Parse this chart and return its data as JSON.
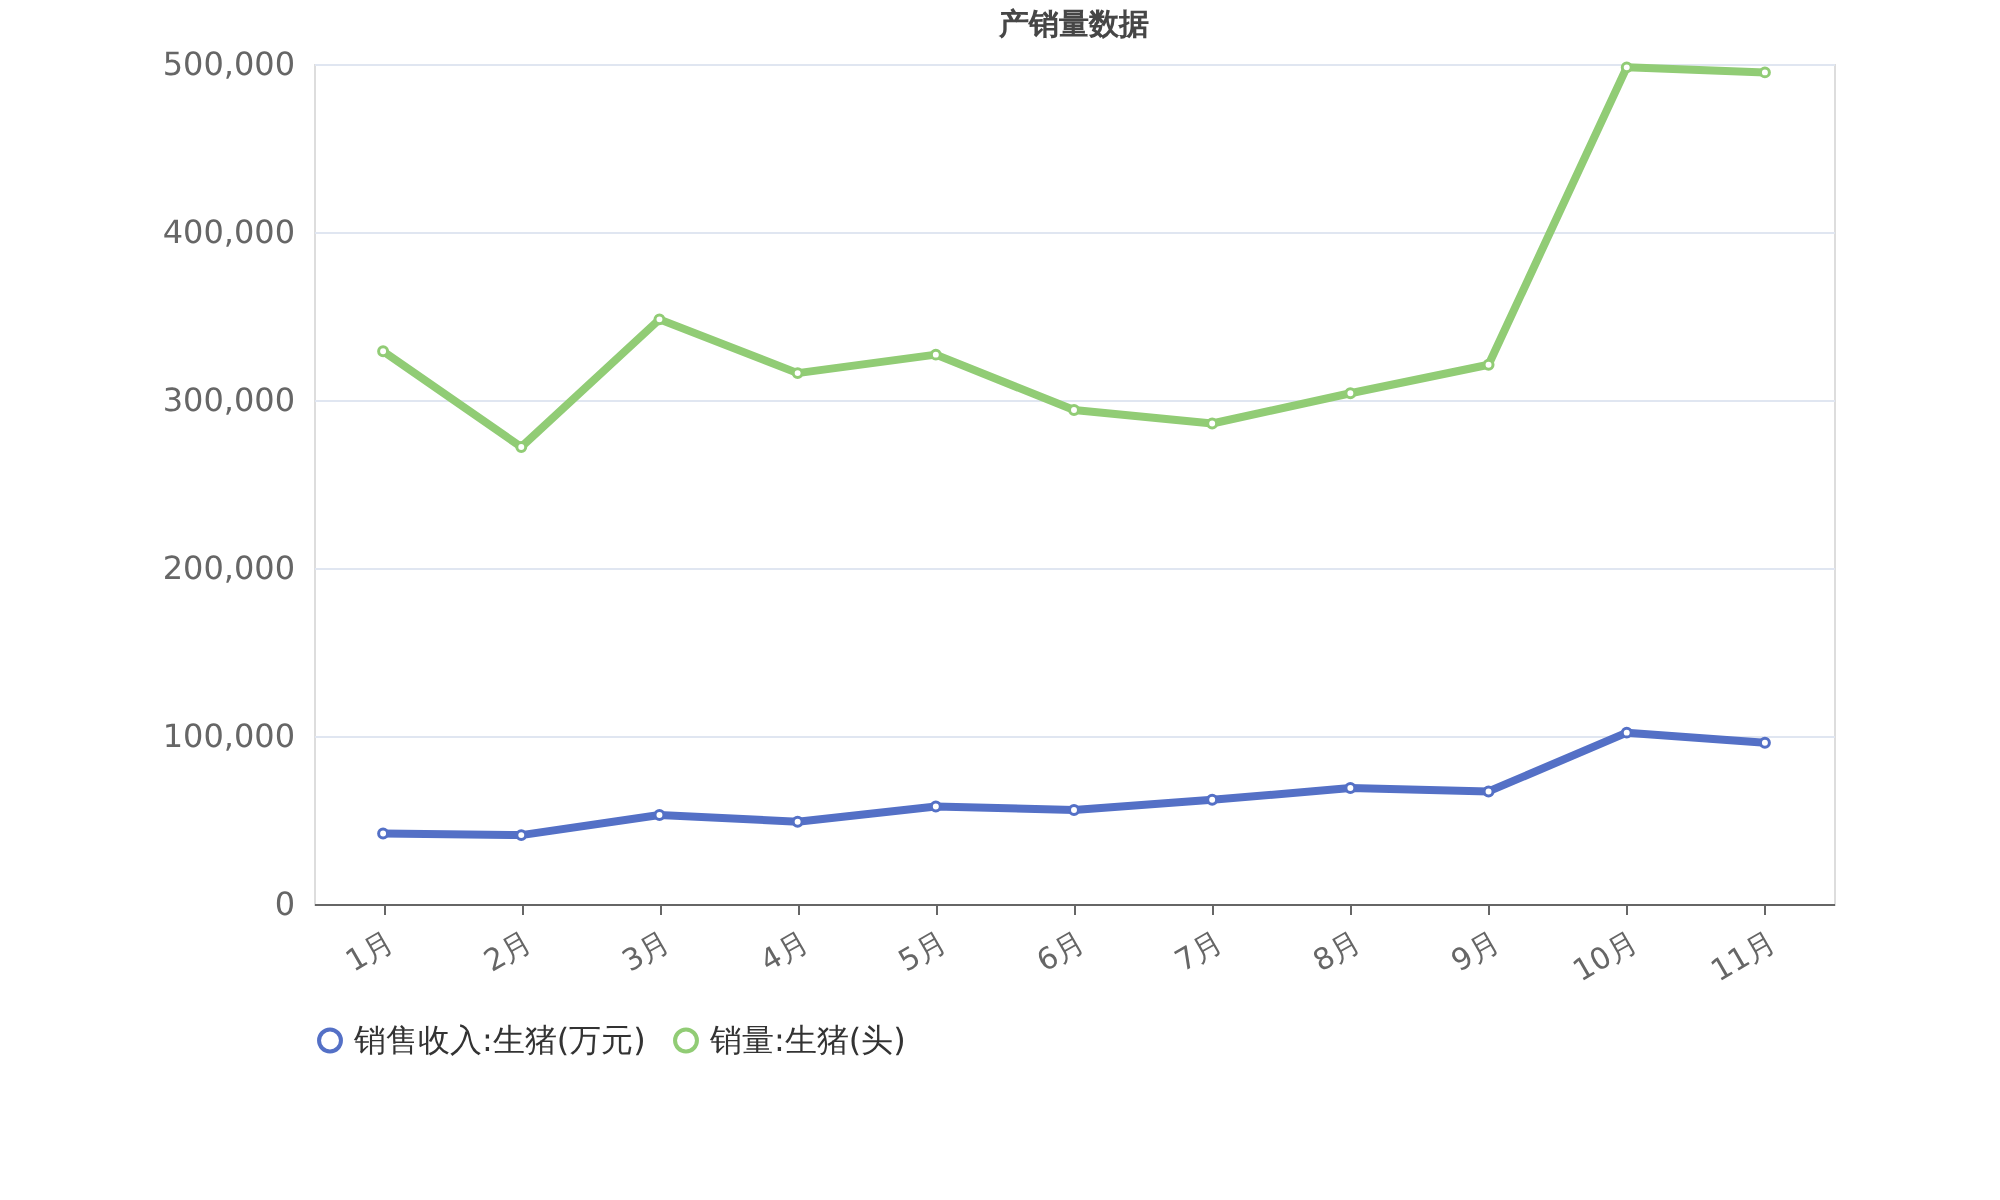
{
  "chart_data": {
    "type": "line",
    "title": "产销量数据",
    "categories": [
      "1月",
      "2月",
      "3月",
      "4月",
      "5月",
      "6月",
      "7月",
      "8月",
      "9月",
      "10月",
      "11月"
    ],
    "series": [
      {
        "name": "销售收入:生猪(万元)",
        "color": "#5470c6",
        "values": [
          42000,
          41000,
          53000,
          49000,
          58000,
          56000,
          62000,
          69000,
          67000,
          102000,
          96000
        ]
      },
      {
        "name": "销量:生猪(头)",
        "color": "#91cc75",
        "values": [
          329000,
          272000,
          348000,
          316000,
          327000,
          294000,
          286000,
          304000,
          321000,
          498000,
          495000
        ]
      }
    ],
    "ylim": [
      0,
      500000
    ],
    "yticks": [
      0,
      {
        "value": 100000,
        "label": "100,000"
      },
      {
        "value": 200000,
        "label": "200,000"
      },
      {
        "value": 300000,
        "label": "300,000"
      },
      {
        "value": 400000,
        "label": "400,000"
      },
      {
        "value": 500000,
        "label": "500,000"
      }
    ],
    "grid": "y",
    "legend": "bottom",
    "marker": "circle",
    "line_style": "solid"
  }
}
